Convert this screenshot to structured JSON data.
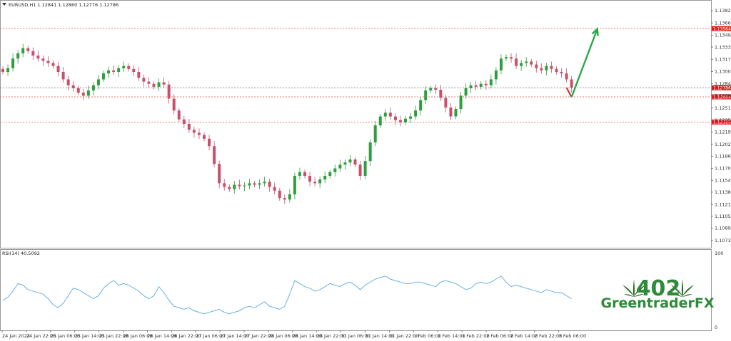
{
  "header": {
    "symbol_info": "EURUSD,H1  1.12841 1.12860 1.12776 1.12786",
    "rsi_label": "RSI(14) 40.5092"
  },
  "logo": {
    "number": "402",
    "name": "GreentraderFX"
  },
  "colors": {
    "bull": "#2e9e3e",
    "bear": "#c8506a",
    "level_line": "#e05a4a",
    "price_tag": "#e02020",
    "arrow_up": "#2aa84a",
    "arrow_down": "#e03030",
    "rsi_line": "#5aa8e0",
    "logo": "#2e8b3a"
  },
  "chart_data": {
    "type": "candlestick",
    "symbol": "EURUSD",
    "timeframe": "H1",
    "ohlc_last": {
      "open": 1.12841,
      "high": 1.1286,
      "low": 1.12776,
      "close": 1.12786
    },
    "ylim": [
      1.1065,
      1.1395
    ],
    "y_ticks": [
      "1.13825",
      "1.13660",
      "1.13495",
      "1.13335",
      "1.13170",
      "1.13005",
      "1.12845",
      "1.12680",
      "1.12515",
      "1.12350",
      "1.12190",
      "1.12025",
      "1.11865",
      "1.11700",
      "1.11540",
      "1.11380",
      "1.11215",
      "1.11055",
      "1.10895",
      "1.10730"
    ],
    "y_tick_values": [
      1.13825,
      1.1366,
      1.13495,
      1.13335,
      1.1317,
      1.13005,
      1.12845,
      1.1268,
      1.12515,
      1.1235,
      1.1219,
      1.12025,
      1.11865,
      1.117,
      1.1154,
      1.1138,
      1.11215,
      1.11055,
      1.10895,
      1.1073
    ],
    "x_ticks": [
      "24 Jan 2022",
      "24 Jan 22:00",
      "25 Jan 06:00",
      "25 Jan 14:00",
      "25 Jan 22:00",
      "26 Jan 06:00",
      "26 Jan 14:00",
      "26 Jan 22:00",
      "27 Jan 06:00",
      "27 Jan 14:00",
      "27 Jan 22:00",
      "28 Jan 06:00",
      "28 Jan 14:00",
      "28 Jan 22:00",
      "31 Jan 06:00",
      "31 Jan 14:00",
      "31 Jan 22:00",
      "1 Feb 06:00",
      "1 Feb 14:00",
      "1 Feb 22:00",
      "2 Feb 06:00",
      "2 Feb 14:00",
      "2 Feb 22:00",
      "3 Feb 06:00"
    ],
    "levels": [
      {
        "price": 1.13584,
        "label": "1.13584"
      },
      {
        "price": 1.12786,
        "label": "1.12786"
      },
      {
        "price": 1.12664,
        "label": "1.12664"
      },
      {
        "price": 1.12325,
        "label": "1.12325"
      }
    ],
    "close_series": [
      1.13,
      1.1305,
      1.1318,
      1.1325,
      1.1332,
      1.1328,
      1.1322,
      1.1318,
      1.1315,
      1.1312,
      1.1308,
      1.13,
      1.129,
      1.1282,
      1.1278,
      1.1272,
      1.1268,
      1.1275,
      1.1282,
      1.129,
      1.1298,
      1.1302,
      1.13,
      1.1305,
      1.1308,
      1.1304,
      1.13,
      1.1292,
      1.1287,
      1.1284,
      1.128,
      1.1286,
      1.1283,
      1.1264,
      1.1248,
      1.1236,
      1.123,
      1.1222,
      1.1218,
      1.1215,
      1.121,
      1.12,
      1.1176,
      1.115,
      1.1145,
      1.1142,
      1.1148,
      1.1146,
      1.1147,
      1.115,
      1.1148,
      1.115,
      1.1152,
      1.1145,
      1.114,
      1.113,
      1.1128,
      1.1135,
      1.116,
      1.1165,
      1.116,
      1.1152,
      1.115,
      1.1155,
      1.116,
      1.1165,
      1.117,
      1.1175,
      1.1178,
      1.1182,
      1.1175,
      1.116,
      1.118,
      1.1205,
      1.1228,
      1.124,
      1.1245,
      1.124,
      1.1235,
      1.1232,
      1.1237,
      1.124,
      1.1248,
      1.1262,
      1.1275,
      1.1278,
      1.1276,
      1.1265,
      1.1252,
      1.124,
      1.125,
      1.1268,
      1.1278,
      1.1282,
      1.128,
      1.1284,
      1.1282,
      1.129,
      1.1302,
      1.1318,
      1.132,
      1.1318,
      1.1308,
      1.1312,
      1.1314,
      1.131,
      1.1305,
      1.1302,
      1.1308,
      1.1304,
      1.13,
      1.1298,
      1.129,
      1.1279
    ],
    "forecast": [
      {
        "time_index": 112,
        "price": 1.1279
      },
      {
        "time_index": 113,
        "price": 1.1266
      },
      {
        "time_index": 115,
        "price": 1.1358
      }
    ],
    "rsi": {
      "name": "RSI(14)",
      "last_value": 40.5092,
      "ylim": [
        0,
        100
      ],
      "y_ticks": [
        "100",
        "0"
      ],
      "values": [
        38,
        42,
        50,
        60,
        58,
        52,
        50,
        48,
        46,
        40,
        32,
        28,
        34,
        44,
        54,
        52,
        48,
        44,
        40,
        44,
        54,
        60,
        64,
        58,
        60,
        58,
        54,
        50,
        44,
        40,
        44,
        56,
        48,
        38,
        30,
        28,
        26,
        28,
        24,
        22,
        20,
        22,
        24,
        26,
        22,
        20,
        22,
        24,
        28,
        30,
        28,
        32,
        36,
        30,
        28,
        26,
        30,
        46,
        64,
        60,
        56,
        54,
        50,
        52,
        56,
        60,
        58,
        56,
        60,
        62,
        58,
        52,
        58,
        62,
        66,
        68,
        70,
        66,
        64,
        62,
        60,
        60,
        62,
        62,
        60,
        58,
        56,
        62,
        64,
        62,
        60,
        56,
        52,
        54,
        60,
        62,
        60,
        62,
        66,
        70,
        62,
        56,
        58,
        56,
        54,
        52,
        50,
        48,
        52,
        50,
        48,
        48,
        44,
        40
      ]
    }
  }
}
